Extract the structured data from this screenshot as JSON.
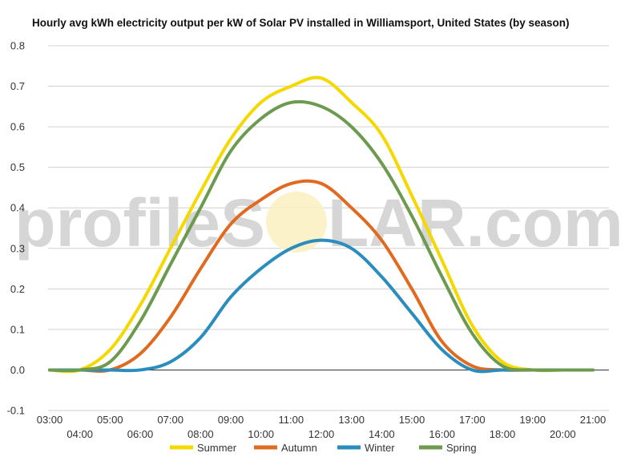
{
  "watermark": {
    "left": "profileS",
    "right": "LAR.com"
  },
  "chart_data": {
    "type": "line",
    "title": "Hourly avg kWh electricity output per kW of Solar PV installed in Williamsport, United States (by season)",
    "xlabel": "",
    "ylabel": "",
    "x": [
      3,
      4,
      5,
      6,
      7,
      8,
      9,
      10,
      11,
      12,
      13,
      14,
      15,
      16,
      17,
      18,
      19,
      20,
      21
    ],
    "x_tick_labels": [
      "03:00",
      "04:00",
      "05:00",
      "06:00",
      "07:00",
      "08:00",
      "09:00",
      "10:00",
      "11:00",
      "12:00",
      "13:00",
      "14:00",
      "15:00",
      "16:00",
      "17:00",
      "18:00",
      "19:00",
      "20:00",
      "21:00"
    ],
    "y_ticks": [
      -0.1,
      0.0,
      0.1,
      0.2,
      0.3,
      0.4,
      0.5,
      0.6,
      0.7,
      0.8
    ],
    "y_tick_labels": [
      "-0.1",
      "0.0",
      "0.1",
      "0.2",
      "0.3",
      "0.4",
      "0.5",
      "0.6",
      "0.7",
      "0.8"
    ],
    "ylim": [
      -0.1,
      0.8
    ],
    "grid": true,
    "legend_position": "bottom",
    "series": [
      {
        "name": "Summer",
        "color": "#f5d800",
        "values": [
          0,
          0,
          0.05,
          0.16,
          0.3,
          0.44,
          0.57,
          0.66,
          0.7,
          0.72,
          0.66,
          0.58,
          0.43,
          0.27,
          0.11,
          0.02,
          0,
          0,
          0
        ]
      },
      {
        "name": "Autumn",
        "color": "#e06a1f",
        "values": [
          0,
          0,
          0,
          0.04,
          0.13,
          0.25,
          0.36,
          0.42,
          0.46,
          0.46,
          0.4,
          0.32,
          0.2,
          0.07,
          0.01,
          0,
          0,
          0,
          0
        ]
      },
      {
        "name": "Winter",
        "color": "#2a8dbd",
        "values": [
          0,
          0,
          0,
          0,
          0.02,
          0.08,
          0.18,
          0.25,
          0.3,
          0.32,
          0.3,
          0.23,
          0.14,
          0.05,
          0,
          0,
          0,
          0,
          0
        ]
      },
      {
        "name": "Spring",
        "color": "#6c9a4e",
        "values": [
          0,
          0,
          0.02,
          0.12,
          0.26,
          0.4,
          0.54,
          0.62,
          0.66,
          0.65,
          0.6,
          0.51,
          0.38,
          0.23,
          0.09,
          0.01,
          0,
          0,
          0
        ]
      }
    ]
  }
}
